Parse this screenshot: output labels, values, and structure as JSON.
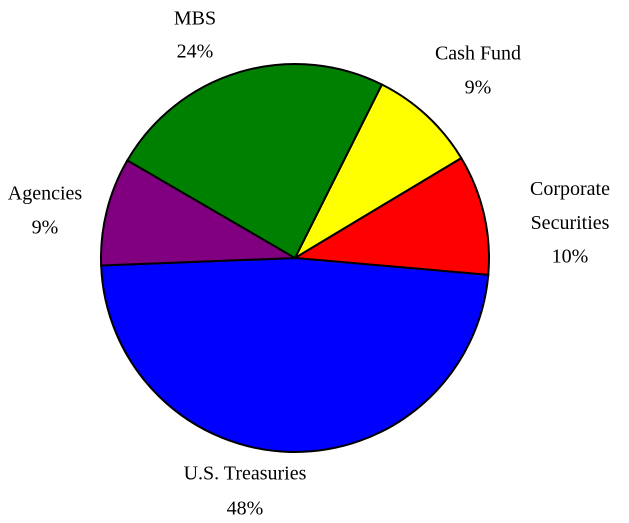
{
  "chart_data": {
    "type": "pie",
    "categories": [
      "Cash Fund",
      "Corporate Securities",
      "U.S. Treasuries",
      "Agencies",
      "MBS"
    ],
    "values": [
      9,
      10,
      48,
      9,
      24
    ],
    "value_labels": [
      "9%",
      "10%",
      "48%",
      "9%",
      "24%"
    ],
    "colors": [
      "#ffff00",
      "#ff0000",
      "#0000ff",
      "#800080",
      "#008000"
    ]
  }
}
